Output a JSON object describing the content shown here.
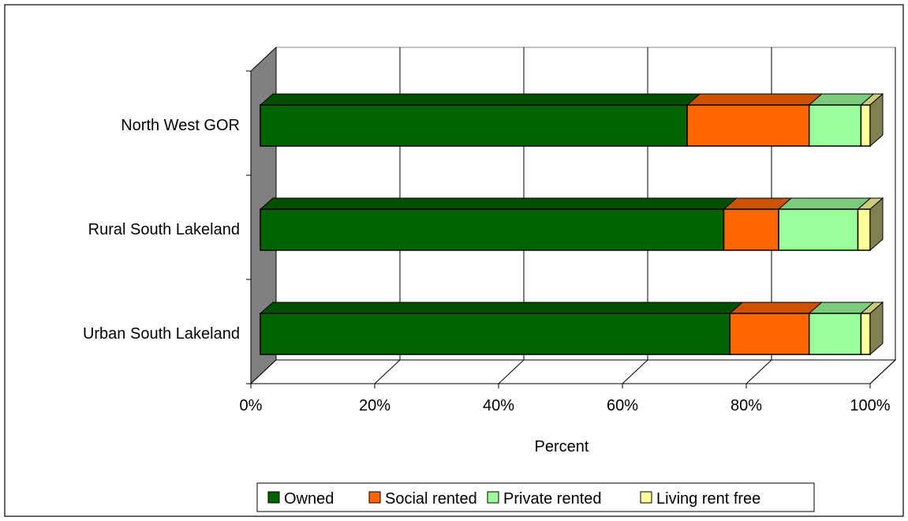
{
  "chart_data": {
    "type": "bar",
    "orientation": "horizontal",
    "stacked": "percent",
    "three_d": true,
    "categories": [
      "North West GOR",
      "Rural South Lakeland",
      "Urban South Lakeland"
    ],
    "series": [
      {
        "name": "Owned",
        "color": "#006400",
        "values": [
          70,
          76,
          77
        ]
      },
      {
        "name": "Social rented",
        "color": "#FF6600",
        "values": [
          20,
          9,
          13
        ]
      },
      {
        "name": "Private rented",
        "color": "#99FF99",
        "values": [
          8.5,
          13,
          8.5
        ]
      },
      {
        "name": "Living rent free",
        "color": "#FFFF99",
        "values": [
          1.5,
          2,
          1.5
        ]
      }
    ],
    "x_ticks": [
      "0%",
      "20%",
      "40%",
      "60%",
      "80%",
      "100%"
    ],
    "xlim": [
      0,
      100
    ],
    "xlabel": "Percent",
    "ylabel": "",
    "grid": true,
    "legend_position": "bottom"
  }
}
